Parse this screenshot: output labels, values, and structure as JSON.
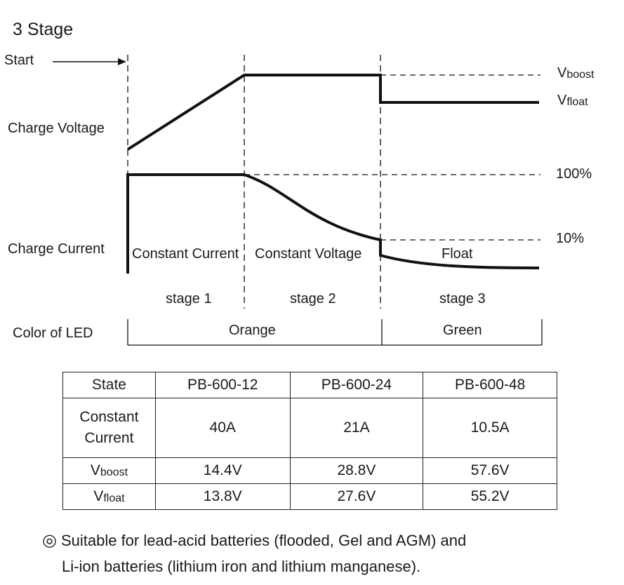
{
  "title": "3 Stage",
  "labels": {
    "start": "Start",
    "charge_voltage": "Charge Voltage",
    "charge_current": "Charge Current",
    "v_boost_main": "V",
    "v_boost_sub": "boost",
    "v_float_main": "V",
    "v_float_sub": "float",
    "pct_100": "100%",
    "pct_10": "10%",
    "constant_current": "Constant Current",
    "constant_voltage": "Constant Voltage",
    "float": "Float",
    "stage1": "stage 1",
    "stage2": "stage 2",
    "stage3": "stage 3",
    "led_label": "Color of  LED",
    "led_orange": "Orange",
    "led_green": "Green"
  },
  "table": {
    "header": [
      "State",
      "PB-600-12",
      "PB-600-24",
      "PB-600-48"
    ],
    "constant_current_label_line1": "Constant",
    "constant_current_label_line2": "Current",
    "constant_current": [
      "40A",
      "21A",
      "10.5A"
    ],
    "vboost_main": "V",
    "vboost_sub": "boost",
    "vboost": [
      "14.4V",
      "28.8V",
      "57.6V"
    ],
    "vfloat_main": "V",
    "vfloat_sub": "float",
    "vfloat": [
      "13.8V",
      "27.6V",
      "55.2V"
    ]
  },
  "note": {
    "symbol": "◎",
    "line1": "Suitable for lead-acid batteries (flooded, Gel and AGM) and",
    "line2": "Li-ion batteries (lithium iron and lithium manganese)."
  }
}
